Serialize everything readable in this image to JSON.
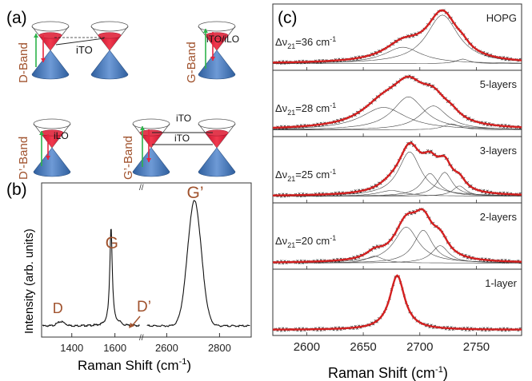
{
  "panel_a": {
    "label": "(a)",
    "bands": [
      {
        "name": "D-Band",
        "process": "iTO"
      },
      {
        "name": "G-Band",
        "process": "iTO/iLO"
      },
      {
        "name": "D’-Band",
        "process": "iLO"
      },
      {
        "name": "G’-Band",
        "process_top": "iTO",
        "process_bottom": "iTO"
      }
    ]
  },
  "panel_b": {
    "label": "(b)",
    "ylabel": "Intensity (arb. units)",
    "xlabel": "Raman Shift (cm",
    "xlabel_sup": "-1",
    "xlabel_close": ")",
    "peak_labels": [
      "D",
      "G",
      "D’",
      "G’"
    ],
    "break_mark": "//",
    "ticks": [
      "1400",
      "1600",
      "2600",
      "2800"
    ]
  },
  "panel_c": {
    "label": "(c)",
    "xlabel": "Raman Shift (cm",
    "xlabel_sup": "-1",
    "xlabel_close": ")",
    "ticks": [
      "2600",
      "2650",
      "2700",
      "2750"
    ],
    "subpanels": [
      {
        "name": "HOPG",
        "delta_prefix": "Δν",
        "delta_sub": "21",
        "delta_value": "=36 cm",
        "delta_sup": "-1"
      },
      {
        "name": "5-layers",
        "delta_prefix": "Δν",
        "delta_sub": "21",
        "delta_value": "=28 cm",
        "delta_sup": "-1"
      },
      {
        "name": "3-layers",
        "delta_prefix": "Δν",
        "delta_sub": "21",
        "delta_value": "=25 cm",
        "delta_sup": "-1"
      },
      {
        "name": "2-layers",
        "delta_prefix": "Δν",
        "delta_sub": "21",
        "delta_value": "=20 cm",
        "delta_sup": "-1"
      },
      {
        "name": "1-layer"
      }
    ]
  },
  "colors": {
    "band_label": "#a0522d",
    "cone_top": "#e8243c",
    "cone_bottom": "#4a7fc1",
    "green_arrow": "#2db34a",
    "red_arrow": "#e8243c",
    "fit_line": "#d42020",
    "data_markers": "#222222"
  }
}
